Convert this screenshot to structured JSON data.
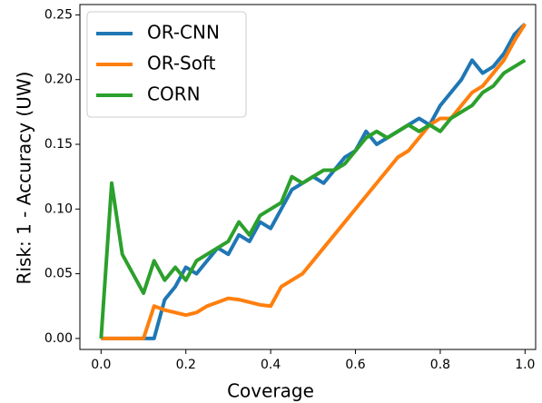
{
  "chart_data": {
    "type": "line",
    "xlabel": "Coverage",
    "ylabel": "Risk: 1 - Accuracy (UW)",
    "x": [
      0,
      0.025,
      0.05,
      0.075,
      0.1,
      0.125,
      0.15,
      0.175,
      0.2,
      0.225,
      0.25,
      0.275,
      0.3,
      0.325,
      0.35,
      0.375,
      0.4,
      0.425,
      0.45,
      0.475,
      0.5,
      0.525,
      0.55,
      0.575,
      0.6,
      0.625,
      0.65,
      0.675,
      0.7,
      0.725,
      0.75,
      0.775,
      0.8,
      0.825,
      0.85,
      0.875,
      0.9,
      0.925,
      0.95,
      0.975,
      1.0
    ],
    "series": [
      {
        "name": "OR-CNN",
        "color": "#1f77b4",
        "values": [
          0,
          0,
          0,
          0,
          0,
          0,
          0.03,
          0.04,
          0.055,
          0.05,
          0.06,
          0.07,
          0.065,
          0.08,
          0.075,
          0.09,
          0.085,
          0.1,
          0.115,
          0.12,
          0.125,
          0.12,
          0.13,
          0.14,
          0.145,
          0.16,
          0.15,
          0.155,
          0.16,
          0.165,
          0.17,
          0.165,
          0.18,
          0.19,
          0.2,
          0.215,
          0.205,
          0.21,
          0.22,
          0.235,
          0.243
        ]
      },
      {
        "name": "OR-Soft",
        "color": "#ff7f0e",
        "values": [
          0,
          0,
          0,
          0,
          0,
          0.025,
          0.022,
          0.02,
          0.018,
          0.02,
          0.025,
          0.028,
          0.031,
          0.03,
          0.028,
          0.026,
          0.025,
          0.04,
          0.045,
          0.05,
          0.06,
          0.07,
          0.08,
          0.09,
          0.1,
          0.11,
          0.12,
          0.13,
          0.14,
          0.145,
          0.155,
          0.165,
          0.17,
          0.17,
          0.18,
          0.19,
          0.195,
          0.205,
          0.215,
          0.23,
          0.243
        ]
      },
      {
        "name": "CORN",
        "color": "#2ca02c",
        "values": [
          0,
          0.12,
          0.065,
          0.05,
          0.035,
          0.06,
          0.045,
          0.055,
          0.045,
          0.06,
          0.065,
          0.07,
          0.075,
          0.09,
          0.08,
          0.095,
          0.1,
          0.105,
          0.125,
          0.12,
          0.125,
          0.13,
          0.13,
          0.135,
          0.145,
          0.155,
          0.16,
          0.155,
          0.16,
          0.165,
          0.16,
          0.165,
          0.16,
          0.17,
          0.175,
          0.18,
          0.19,
          0.195,
          0.205,
          0.21,
          0.215
        ]
      }
    ],
    "xlim": [
      -0.05,
      1.025
    ],
    "ylim": [
      -0.0085,
      0.258
    ],
    "xticks": [
      {
        "value": 0,
        "label": "0.0"
      },
      0.2,
      0.4,
      0.6,
      0.8,
      {
        "value": 1.0,
        "label": "1.0"
      }
    ],
    "yticks": [
      {
        "value": 0,
        "label": "0.00"
      },
      {
        "value": 0.05,
        "label": "0.05"
      },
      {
        "value": 0.1,
        "label": "0.10"
      },
      {
        "value": 0.15,
        "label": "0.15"
      },
      {
        "value": 0.2,
        "label": "0.20"
      },
      {
        "value": 0.25,
        "label": "0.25"
      }
    ],
    "legend": "upper left"
  }
}
